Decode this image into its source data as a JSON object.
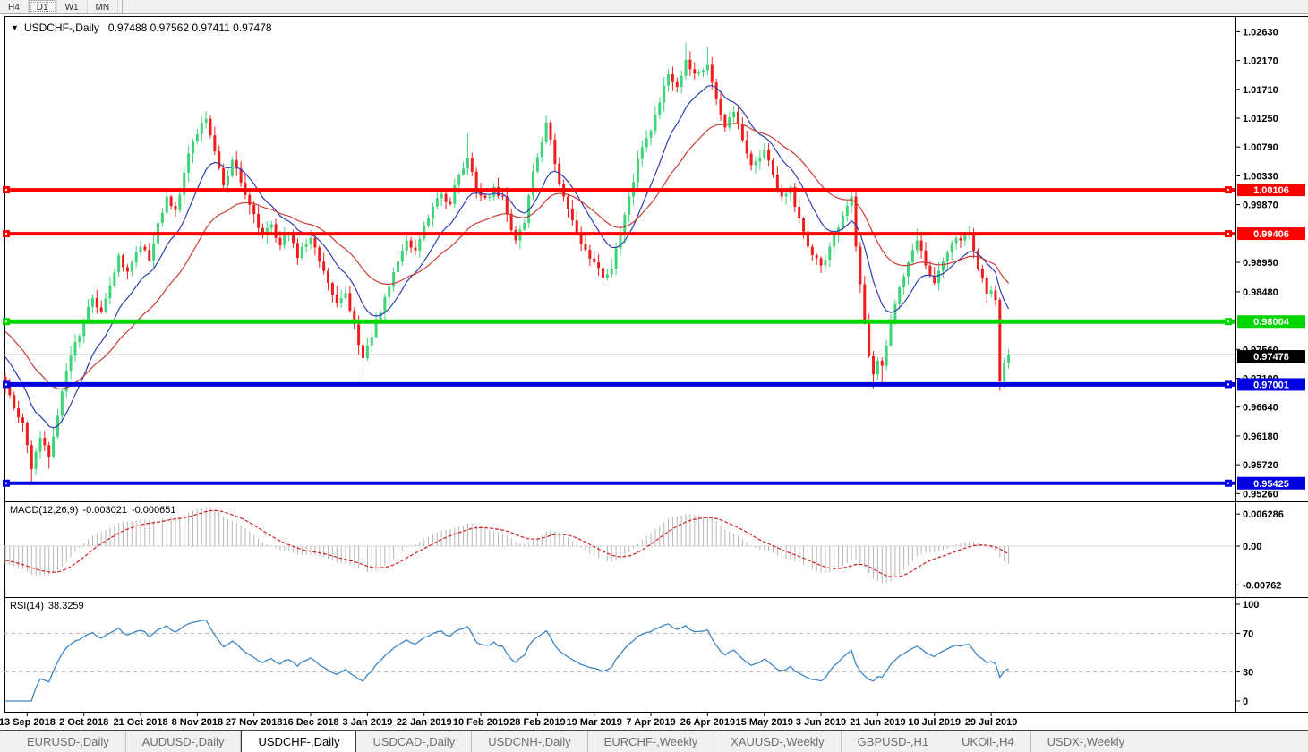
{
  "toolbar": {
    "timeframes": [
      {
        "label": "H4",
        "active": false
      },
      {
        "label": "D1",
        "active": true
      },
      {
        "label": "W1",
        "active": false
      },
      {
        "label": "MN",
        "active": false
      }
    ]
  },
  "chart": {
    "title": {
      "dropdown_icon": "▼",
      "symbol": "USDCHF-,Daily",
      "ohlc": "0.97488 0.97562 0.97411 0.97478"
    },
    "price_axis_labels": [
      "1.02630",
      "1.02170",
      "1.01710",
      "1.01250",
      "1.00790",
      "1.00330",
      "0.99870",
      "0.98950",
      "0.98480",
      "0.97560",
      "0.97100",
      "0.96640",
      "0.96180",
      "0.95720",
      "0.95260"
    ],
    "current_price": {
      "value": "0.97478",
      "line_color": "#c8c8c8",
      "label_bg": "#000000"
    },
    "levels": [
      {
        "value": "1.00106",
        "price": 1.00106,
        "color": "#ff0000",
        "width": 4
      },
      {
        "value": "0.99406",
        "price": 0.99406,
        "color": "#ff0000",
        "width": 4
      },
      {
        "value": "0.98004",
        "price": 0.98004,
        "color": "#00d500",
        "width": 5
      },
      {
        "value": "0.97001",
        "price": 0.97001,
        "color": "#0000e0",
        "width": 5
      },
      {
        "value": "0.95425",
        "price": 0.95425,
        "color": "#0000e0",
        "width": 4
      }
    ]
  },
  "chart_data": {
    "type": "candlestick",
    "symbol": "USDCHF",
    "timeframe": "Daily",
    "title_ohlc": {
      "open": 0.97488,
      "high": 0.97562,
      "low": 0.97411,
      "close": 0.97478
    },
    "bars": 231,
    "visible_price_range": [
      0.9516,
      1.0285
    ],
    "note": "231 daily candles; path reconstructed from the visible chart, values approximate",
    "approx_close_anchors": [
      [
        0,
        0.97,
        0,
        0
      ],
      [
        2,
        0.9662,
        0,
        0
      ],
      [
        4,
        0.9638,
        0,
        0
      ],
      [
        6,
        0.9565,
        0,
        0.9542
      ],
      [
        8,
        0.9615,
        0,
        0
      ],
      [
        10,
        0.9585,
        0,
        0.9566
      ],
      [
        12,
        0.965,
        0,
        0
      ],
      [
        14,
        0.9722,
        0,
        0
      ],
      [
        16,
        0.9768,
        0,
        0
      ],
      [
        18,
        0.98,
        0,
        0
      ],
      [
        20,
        0.9838,
        0,
        0
      ],
      [
        22,
        0.9816,
        0,
        0
      ],
      [
        24,
        0.9858,
        0,
        0
      ],
      [
        26,
        0.9906,
        0,
        0
      ],
      [
        28,
        0.988,
        0,
        0
      ],
      [
        31,
        0.992,
        0,
        0
      ],
      [
        33,
        0.9898,
        0,
        0
      ],
      [
        35,
        0.9958,
        0,
        0
      ],
      [
        37,
        1.0,
        0,
        0
      ],
      [
        39,
        0.9978,
        0,
        0
      ],
      [
        41,
        1.0038,
        0,
        0
      ],
      [
        43,
        1.0088,
        0,
        0
      ],
      [
        46,
        1.0124,
        1.0136,
        0
      ],
      [
        48,
        1.0072,
        0,
        0
      ],
      [
        50,
        1.0018,
        0,
        0
      ],
      [
        52,
        1.0058,
        0,
        0
      ],
      [
        54,
        1.0022,
        0,
        0
      ],
      [
        57,
        0.9972,
        0,
        0
      ],
      [
        59,
        0.9938,
        0,
        0
      ],
      [
        61,
        0.9956,
        0,
        0
      ],
      [
        63,
        0.9922,
        0,
        0
      ],
      [
        65,
        0.994,
        0,
        0
      ],
      [
        67,
        0.9902,
        0,
        0
      ],
      [
        70,
        0.9934,
        0,
        0
      ],
      [
        72,
        0.9896,
        0,
        0
      ],
      [
        74,
        0.9862,
        0,
        0
      ],
      [
        76,
        0.983,
        0,
        0
      ],
      [
        78,
        0.9846,
        0,
        0
      ],
      [
        80,
        0.9796,
        0,
        0
      ],
      [
        82,
        0.9742,
        0,
        0.9716
      ],
      [
        84,
        0.9776,
        0,
        0
      ],
      [
        86,
        0.9816,
        0,
        0
      ],
      [
        88,
        0.9856,
        0,
        0
      ],
      [
        90,
        0.9896,
        0,
        0
      ],
      [
        92,
        0.993,
        0,
        0
      ],
      [
        94,
        0.9914,
        0,
        0
      ],
      [
        96,
        0.9954,
        0,
        0
      ],
      [
        98,
        0.9984,
        0,
        0
      ],
      [
        100,
        1.0004,
        0,
        0
      ],
      [
        102,
        0.9988,
        0,
        0
      ],
      [
        104,
        1.0035,
        0,
        0
      ],
      [
        106,
        1.0062,
        1.01,
        0
      ],
      [
        108,
        1.001,
        0,
        0
      ],
      [
        110,
        0.9998,
        0,
        0
      ],
      [
        112,
        1.0015,
        0,
        0
      ],
      [
        114,
        1.0,
        0,
        0
      ],
      [
        117,
        0.993,
        0,
        0
      ],
      [
        119,
        0.9958,
        0,
        0
      ],
      [
        121,
        1.004,
        0,
        0
      ],
      [
        124,
        1.0118,
        1.0131,
        0
      ],
      [
        126,
        1.0052,
        0,
        0
      ],
      [
        128,
        1.0,
        0,
        0
      ],
      [
        130,
        0.9962,
        0,
        0
      ],
      [
        132,
        0.9925,
        0,
        0
      ],
      [
        135,
        0.9895,
        0,
        0
      ],
      [
        137,
        0.987,
        0,
        0
      ],
      [
        139,
        0.9885,
        0,
        0
      ],
      [
        141,
        0.994,
        0,
        0
      ],
      [
        143,
        1.0,
        0,
        0
      ],
      [
        145,
        1.006,
        0,
        0
      ],
      [
        148,
        1.0105,
        0,
        0
      ],
      [
        150,
        1.015,
        0,
        0
      ],
      [
        152,
        1.0195,
        0,
        0
      ],
      [
        154,
        1.0175,
        0,
        0
      ],
      [
        156,
        1.0218,
        1.0246,
        0
      ],
      [
        158,
        1.0196,
        0,
        0
      ],
      [
        161,
        1.021,
        1.0238,
        0
      ],
      [
        163,
        1.0155,
        0,
        0
      ],
      [
        165,
        1.011,
        0,
        0
      ],
      [
        167,
        1.0135,
        0,
        0
      ],
      [
        169,
        1.009,
        0,
        0
      ],
      [
        171,
        1.005,
        0,
        0
      ],
      [
        174,
        1.0075,
        0,
        0
      ],
      [
        176,
        1.0035,
        0,
        0
      ],
      [
        178,
        1.0,
        0,
        0
      ],
      [
        180,
        1.0015,
        0,
        0
      ],
      [
        182,
        0.9965,
        0,
        0
      ],
      [
        184,
        0.992,
        0,
        0
      ],
      [
        187,
        0.989,
        0,
        0
      ],
      [
        189,
        0.992,
        0,
        0
      ],
      [
        191,
        0.995,
        0,
        0
      ],
      [
        193,
        0.9985,
        0,
        0
      ],
      [
        194,
        1.0,
        1.0012,
        0
      ],
      [
        195,
        0.992,
        0,
        0
      ],
      [
        196,
        0.986,
        0,
        0
      ],
      [
        197,
        0.98,
        0,
        0
      ],
      [
        198,
        0.9745,
        0,
        0
      ],
      [
        199,
        0.9716,
        0,
        0.9694
      ],
      [
        200,
        0.9738,
        0,
        0
      ],
      [
        201,
        0.973,
        0,
        0.9697
      ],
      [
        203,
        0.98,
        0,
        0
      ],
      [
        205,
        0.9855,
        0,
        0
      ],
      [
        207,
        0.9895,
        0,
        0
      ],
      [
        209,
        0.993,
        0.9949,
        0
      ],
      [
        211,
        0.989,
        0,
        0
      ],
      [
        213,
        0.9862,
        0,
        0
      ],
      [
        215,
        0.9896,
        0,
        0
      ],
      [
        217,
        0.9926,
        0,
        0
      ],
      [
        219,
        0.993,
        0,
        0
      ],
      [
        221,
        0.994,
        0.9952,
        0
      ],
      [
        223,
        0.9885,
        0,
        0
      ],
      [
        225,
        0.9845,
        0,
        0
      ],
      [
        226,
        0.985,
        0,
        0
      ],
      [
        227,
        0.9835,
        0,
        0
      ],
      [
        228,
        0.9705,
        0,
        0.969
      ],
      [
        229,
        0.9735,
        0,
        0
      ],
      [
        230,
        0.9748,
        0,
        0
      ]
    ],
    "date_labels": [
      {
        "text": "13 Sep 2018",
        "bar": 5
      },
      {
        "text": "2 Oct 2018",
        "bar": 18
      },
      {
        "text": "21 Oct 2018",
        "bar": 31
      },
      {
        "text": "8 Nov 2018",
        "bar": 44
      },
      {
        "text": "27 Nov 2018",
        "bar": 57
      },
      {
        "text": "16 Dec 2018",
        "bar": 70
      },
      {
        "text": "3 Jan 2019",
        "bar": 83
      },
      {
        "text": "22 Jan 2019",
        "bar": 96
      },
      {
        "text": "10 Feb 2019",
        "bar": 109
      },
      {
        "text": "28 Feb 2019",
        "bar": 122
      },
      {
        "text": "19 Mar 2019",
        "bar": 135
      },
      {
        "text": "7 Apr 2019",
        "bar": 148
      },
      {
        "text": "26 Apr 2019",
        "bar": 161
      },
      {
        "text": "15 May 2019",
        "bar": 174
      },
      {
        "text": "3 Jun 2019",
        "bar": 187
      },
      {
        "text": "21 Jun 2019",
        "bar": 200
      },
      {
        "text": "10 Jul 2019",
        "bar": 213
      },
      {
        "text": "29 Jul 2019",
        "bar": 226
      }
    ],
    "moving_averages": [
      {
        "name": "fast-ma",
        "period": 12,
        "color": "#2e3fae"
      },
      {
        "name": "slow-ma",
        "period": 30,
        "color": "#cc3b36"
      }
    ],
    "indicators": [
      {
        "name": "MACD",
        "label": "MACD(12,26,9)",
        "value_main": "-0.003021",
        "value_signal": "-0.000651",
        "scale": [
          {
            "text": "0.006286",
            "v": 0.006286
          },
          {
            "text": "0.00",
            "v": 0
          },
          {
            "text": "-0.00762",
            "v": -0.00762
          }
        ],
        "histogram_color": "#b6b6b6",
        "signal_color": "#d02020"
      },
      {
        "name": "RSI",
        "label": "RSI(14)",
        "value": "38.3259",
        "scale": [
          {
            "text": "100",
            "v": 100
          },
          {
            "text": "70",
            "v": 70
          },
          {
            "text": "30",
            "v": 30
          },
          {
            "text": "0",
            "v": 0
          }
        ],
        "levels": [
          70,
          30
        ],
        "line_color": "#3f85c6"
      }
    ],
    "candle_colors": {
      "up": "#3fd479",
      "down": "#f01d1d"
    }
  },
  "tabs": {
    "items": [
      {
        "label": "EURUSD-,Daily",
        "active": false
      },
      {
        "label": "AUDUSD-,Daily",
        "active": false
      },
      {
        "label": "USDCHF-,Daily",
        "active": true
      },
      {
        "label": "USDCAD-,Daily",
        "active": false
      },
      {
        "label": "USDCNH-,Daily",
        "active": false
      },
      {
        "label": "EURCHF-,Weekly",
        "active": false
      },
      {
        "label": "XAUUSD-,Weekly",
        "active": false
      },
      {
        "label": "GBPUSD-,H1",
        "active": false
      },
      {
        "label": "UKOil-,H4",
        "active": false
      },
      {
        "label": "USDX-,Weekly",
        "active": false
      }
    ],
    "scroll_left_icon": "◄",
    "scroll_right_icon": "►"
  }
}
